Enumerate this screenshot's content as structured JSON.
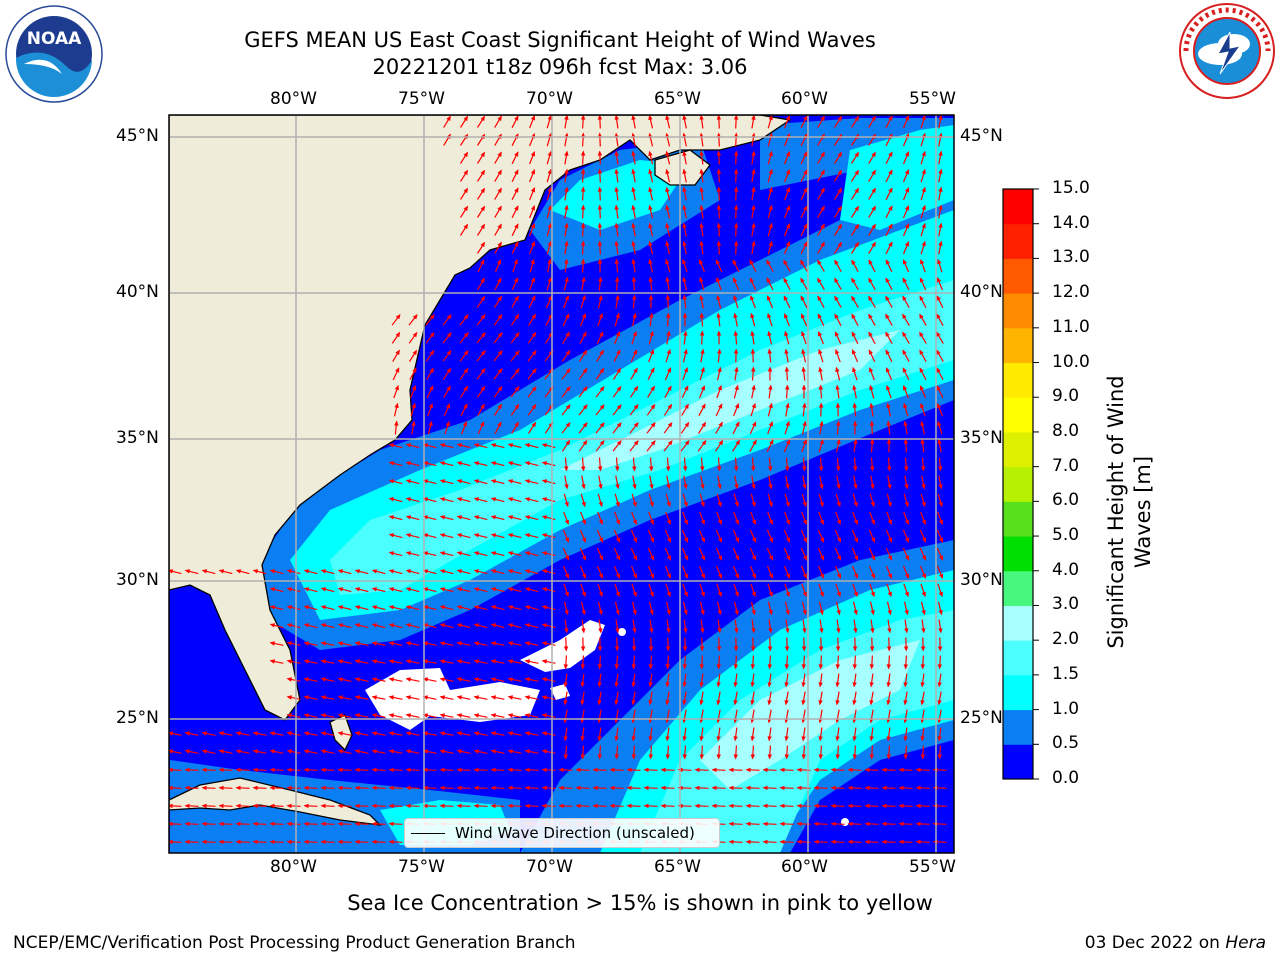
{
  "title_line1": "GEFS MEAN US East Coast Significant Height of Wind Waves",
  "title_line2": "20221201 t18z 096h fcst   Max: 3.06",
  "logos": {
    "left": "noaa-logo",
    "right": "nws-logo",
    "left_text": "NOAA"
  },
  "map": {
    "lon_labels": [
      "80°W",
      "75°W",
      "70°W",
      "65°W",
      "60°W",
      "55°W"
    ],
    "lat_labels": [
      "45°N",
      "40°N",
      "35°N",
      "30°N",
      "25°N"
    ],
    "land_color": "#efedd9",
    "missing_color": "#ffffff",
    "arrow_color": "#ff0000"
  },
  "legend": {
    "label": "Wind Wave Direction (unscaled)"
  },
  "colorbar": {
    "label": "Significant Height of Wind Waves [m]",
    "label_line1": "Significant Height of Wind",
    "label_line2": "Waves [m]",
    "ticks": [
      "0.0",
      "0.5",
      "1.0",
      "1.5",
      "2.0",
      "3.0",
      "4.0",
      "5.0",
      "6.0",
      "7.0",
      "8.0",
      "9.0",
      "10.0",
      "11.0",
      "12.0",
      "13.0",
      "14.0",
      "15.0"
    ],
    "colors": [
      "#0000ff",
      "#0a7ff4",
      "#00ffff",
      "#4cffff",
      "#a8ffff",
      "#48f77d",
      "#00e000",
      "#59e01c",
      "#b7f000",
      "#ddf000",
      "#ffff00",
      "#ffea00",
      "#ffb500",
      "#ff8c00",
      "#ff5a00",
      "#ff2000",
      "#ff0000"
    ]
  },
  "caption": "Sea Ice Concentration > 15% is shown in pink to yellow",
  "footer": {
    "left": "NCEP/EMC/Verification Post Processing Product Generation Branch",
    "right_prefix": "03 Dec 2022 on ",
    "right_host": "Hera"
  }
}
